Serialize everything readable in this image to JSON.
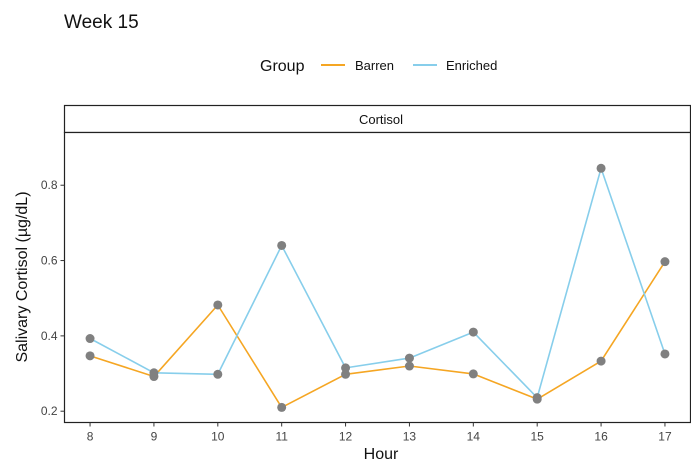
{
  "chart_data": {
    "type": "line",
    "title": "Week 15",
    "legend": {
      "title": "Group",
      "placement": "top",
      "entries": [
        "Barren",
        "Enriched"
      ]
    },
    "facet_label": "Cortisol",
    "xlabel": "Hour",
    "ylabel": "Salivary Cortisol (µg/dL)",
    "x": [
      8,
      9,
      10,
      11,
      12,
      13,
      14,
      15,
      16,
      17
    ],
    "x_ticks": [
      "8",
      "9",
      "10",
      "11",
      "12",
      "13",
      "14",
      "15",
      "16",
      "17"
    ],
    "y_ticks": [
      "0.2",
      "0.4",
      "0.6",
      "0.8"
    ],
    "xlim": [
      7.6,
      17.4
    ],
    "ylim": [
      0.17,
      0.94
    ],
    "grid": false,
    "series": [
      {
        "name": "Barren",
        "color": "#F5A623",
        "values": [
          0.347,
          0.292,
          0.482,
          0.21,
          0.298,
          0.32,
          0.299,
          0.232,
          0.333,
          0.597
        ]
      },
      {
        "name": "Enriched",
        "color": "#87CEEB",
        "values": [
          0.393,
          0.302,
          0.298,
          0.64,
          0.315,
          0.341,
          0.41,
          0.236,
          0.845,
          0.352
        ]
      }
    ],
    "point_color": "#808080"
  }
}
